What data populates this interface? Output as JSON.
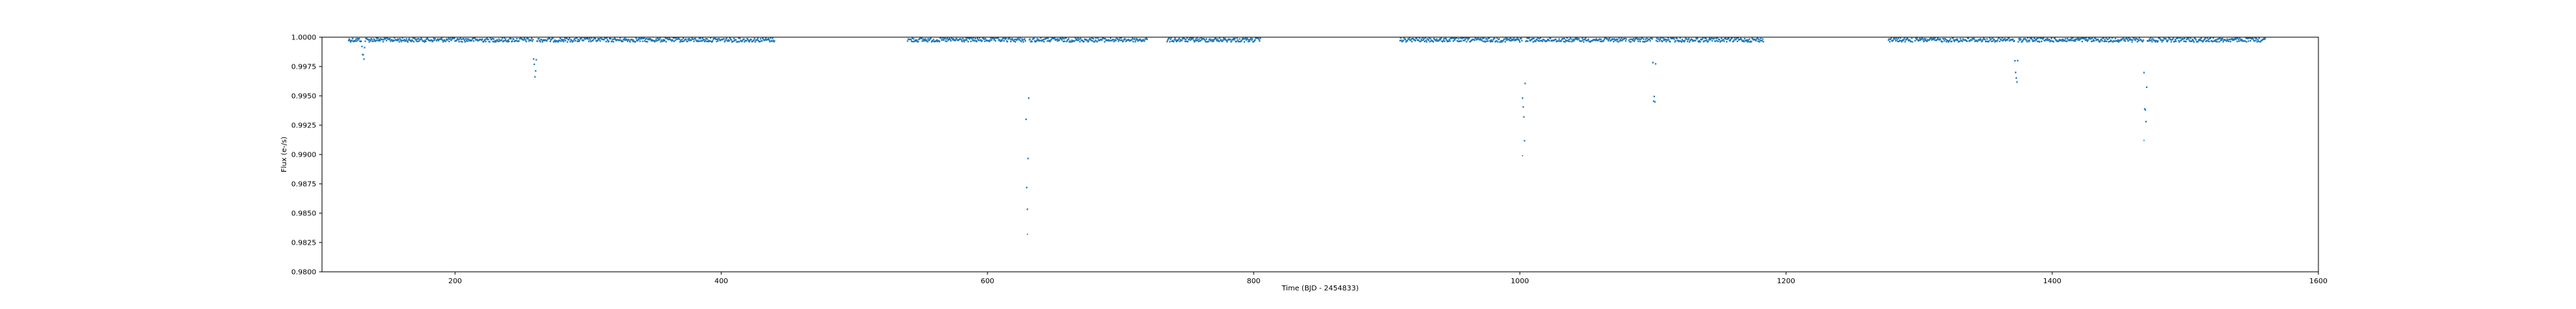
{
  "chart_data": {
    "type": "scatter",
    "title": "",
    "xlabel": "Time (BJD - 2454833)",
    "ylabel": "Flux (e-/s)",
    "xlim": [
      100,
      1600
    ],
    "ylim": [
      0.98,
      1.0
    ],
    "xticks": [
      200,
      400,
      600,
      800,
      1000,
      1200,
      1400,
      1600
    ],
    "yticks": [
      0.98,
      0.9825,
      0.985,
      0.9875,
      0.99,
      0.9925,
      0.995,
      0.9975,
      1.0
    ],
    "ytick_labels": [
      "0.9800",
      "0.9825",
      "0.9850",
      "0.9875",
      "0.9900",
      "0.9925",
      "0.9950",
      "0.9975",
      "1.0000"
    ],
    "grid": false,
    "legend": "none",
    "series_color": "#1f77b4",
    "observing_segments": [
      [
        120,
        185
      ],
      [
        186,
        440
      ],
      [
        540,
        720
      ],
      [
        735,
        805
      ],
      [
        910,
        1080
      ],
      [
        1082,
        1183
      ],
      [
        1277,
        1295
      ],
      [
        1297,
        1560
      ]
    ],
    "transits": [
      {
        "t": 131,
        "depth": 0.0018
      },
      {
        "t": 260,
        "depth": 0.0038
      },
      {
        "t": 630,
        "depth": 0.0168
      },
      {
        "t": 1003,
        "depth": 0.0102
      },
      {
        "t": 1101,
        "depth": 0.0065
      },
      {
        "t": 1373,
        "depth": 0.0046
      },
      {
        "t": 1470,
        "depth": 0.0088
      }
    ],
    "min_flux_outliers": [
      {
        "t": 630,
        "flux": 0.9832
      },
      {
        "t": 1002,
        "flux": 0.9899
      },
      {
        "t": 1469,
        "flux": 0.9912
      }
    ]
  }
}
